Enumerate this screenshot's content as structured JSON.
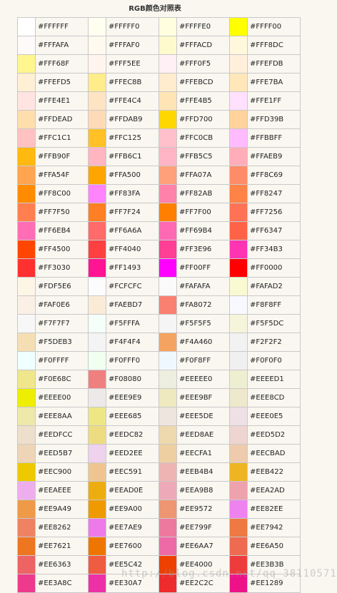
{
  "title": "RGB颜色对照表",
  "watermark": "http://blog.csdn.net/qq_38110571",
  "rows": [
    [
      "#FFFFFF",
      "#FFFFF0",
      "#FFFFE0",
      "#FFFF00"
    ],
    [
      "#FFFAFA",
      "#FFFAF0",
      "#FFFACD",
      "#FFF8DC"
    ],
    [
      "#FFF68F",
      "#FFF5EE",
      "#FFF0F5",
      "#FFEFDB"
    ],
    [
      "#FFEFD5",
      "#FFEC8B",
      "#FFEBCD",
      "#FFE7BA"
    ],
    [
      "#FFE4E1",
      "#FFE4C4",
      "#FFE4B5",
      "#FFE1FF"
    ],
    [
      "#FFDEAD",
      "#FFDAB9",
      "#FFD700",
      "#FFD39B"
    ],
    [
      "#FFC1C1",
      "#FFC125",
      "#FFC0CB",
      "#FFBBFF"
    ],
    [
      "#FFB90F",
      "#FFB6C1",
      "#FFB5C5",
      "#FFAEB9"
    ],
    [
      "#FFA54F",
      "#FFA500",
      "#FFA07A",
      "#FF8C69"
    ],
    [
      "#FF8C00",
      "#FF83FA",
      "#FF82AB",
      "#FF8247"
    ],
    [
      "#FF7F50",
      "#FF7F24",
      "#FF7F00",
      "#FF7256"
    ],
    [
      "#FF6EB4",
      "#FF6A6A",
      "#FF69B4",
      "#FF6347"
    ],
    [
      "#FF4500",
      "#FF4040",
      "#FF3E96",
      "#FF34B3"
    ],
    [
      "#FF3030",
      "#FF1493",
      "#FF00FF",
      "#FF0000"
    ],
    [
      "#FDF5E6",
      "#FCFCFC",
      "#FAFAFA",
      "#FAFAD2"
    ],
    [
      "#FAF0E6",
      "#FAEBD7",
      "#FA8072",
      "#F8F8FF"
    ],
    [
      "#F7F7F7",
      "#F5FFFA",
      "#F5F5F5",
      "#F5F5DC"
    ],
    [
      "#F5DEB3",
      "#F4F4F4",
      "#F4A460",
      "#F2F2F2"
    ],
    [
      "#F0FFFF",
      "#F0FFF0",
      "#F0F8FF",
      "#F0F0F0"
    ],
    [
      "#F0E68C",
      "#F08080",
      "#EEEEE0",
      "#EEEED1"
    ],
    [
      "#EEEE00",
      "#EEE9E9",
      "#EEE9BF",
      "#EEE8CD"
    ],
    [
      "#EEE8AA",
      "#EEE685",
      "#EEE5DE",
      "#EEE0E5"
    ],
    [
      "#EEDFCC",
      "#EEDC82",
      "#EED8AE",
      "#EED5D2"
    ],
    [
      "#EED5B7",
      "#EED2EE",
      "#EECFA1",
      "#EECBAD"
    ],
    [
      "#EEC900",
      "#EEC591",
      "#EEB4B4",
      "#EEB422"
    ],
    [
      "#EEAEEE",
      "#EEAD0E",
      "#EEA9B8",
      "#EEA2AD"
    ],
    [
      "#EE9A49",
      "#EE9A00",
      "#EE9572",
      "#EE82EE"
    ],
    [
      "#EE8262",
      "#EE7AE9",
      "#EE799F",
      "#EE7942"
    ],
    [
      "#EE7621",
      "#EE7600",
      "#EE6AA7",
      "#EE6A50"
    ],
    [
      "#EE6363",
      "#EE5C42",
      "#EE4000",
      "#EE3B3B"
    ],
    [
      "#EE3A8C",
      "#EE30A7",
      "#EE2C2C",
      "#EE1289"
    ]
  ]
}
